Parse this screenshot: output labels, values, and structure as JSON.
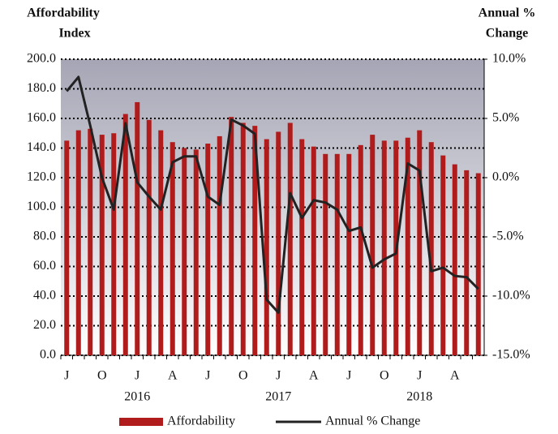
{
  "chart_data": {
    "type": "bar_line",
    "ylabel": [
      "Affordability",
      "Index"
    ],
    "y2label": [
      "Annual %",
      "Change"
    ],
    "categories": [
      "J",
      null,
      null,
      "O",
      null,
      null,
      "J",
      null,
      null,
      "A",
      null,
      null,
      "J",
      null,
      null,
      "O",
      null,
      null,
      "J",
      null,
      null,
      "A",
      null,
      null,
      "J",
      null,
      null,
      "O",
      null,
      null,
      "J",
      null,
      null,
      "A",
      null,
      null
    ],
    "years": [
      null,
      null,
      null,
      null,
      null,
      null,
      "2016",
      null,
      null,
      null,
      null,
      null,
      null,
      null,
      null,
      null,
      null,
      null,
      "2017",
      null,
      null,
      null,
      null,
      null,
      null,
      null,
      null,
      null,
      null,
      null,
      "2018",
      null,
      null,
      null,
      null,
      null
    ],
    "series": [
      {
        "name": "Affordability",
        "color": "#b01c1c",
        "values": [
          145,
          152,
          153,
          149,
          150,
          163,
          171,
          159,
          152,
          144,
          140,
          139,
          143,
          148,
          161,
          157,
          155,
          146,
          151,
          157,
          146,
          141,
          136,
          136,
          136,
          142,
          149,
          145,
          145,
          147,
          152,
          144,
          135,
          129,
          125,
          123
        ]
      },
      {
        "name": "Annual % Change",
        "color": "#222222",
        "axis": "y2",
        "values": [
          7.3,
          8.5,
          4.4,
          0.0,
          -2.7,
          4.6,
          -0.4,
          -1.6,
          -2.7,
          1.3,
          1.8,
          1.8,
          -1.6,
          -2.3,
          4.9,
          4.4,
          3.7,
          -10.3,
          -11.4,
          -1.3,
          -3.4,
          -1.9,
          -2.1,
          -2.7,
          -4.5,
          -4.2,
          -7.6,
          -6.9,
          -6.4,
          1.2,
          0.6,
          -7.9,
          -7.6,
          -8.3,
          -8.4,
          -9.4
        ]
      }
    ],
    "ylim": [
      0,
      200
    ],
    "yticks": [
      {
        "value": 0,
        "label": "0.0"
      },
      {
        "value": 20,
        "label": "20.0"
      },
      {
        "value": 40,
        "label": "40.0"
      },
      {
        "value": 60,
        "label": "60.0"
      },
      {
        "value": 80,
        "label": "80.0"
      },
      {
        "value": 100,
        "label": "100.0"
      },
      {
        "value": 120,
        "label": "120.0"
      },
      {
        "value": 140,
        "label": "140.0"
      },
      {
        "value": 160,
        "label": "160.0"
      },
      {
        "value": 180,
        "label": "180.0"
      },
      {
        "value": 200,
        "label": "200.0"
      }
    ],
    "y2lim": [
      -15,
      10
    ],
    "y2ticks": [
      {
        "value": -15,
        "label": "-15.0%"
      },
      {
        "value": -10,
        "label": "-10.0%"
      },
      {
        "value": -5,
        "label": "-5.0%"
      },
      {
        "value": 0,
        "label": "0.0%"
      },
      {
        "value": 5,
        "label": "5.0%"
      },
      {
        "value": 10,
        "label": "10.0%"
      }
    ],
    "grid": true,
    "legend": "bottom"
  }
}
